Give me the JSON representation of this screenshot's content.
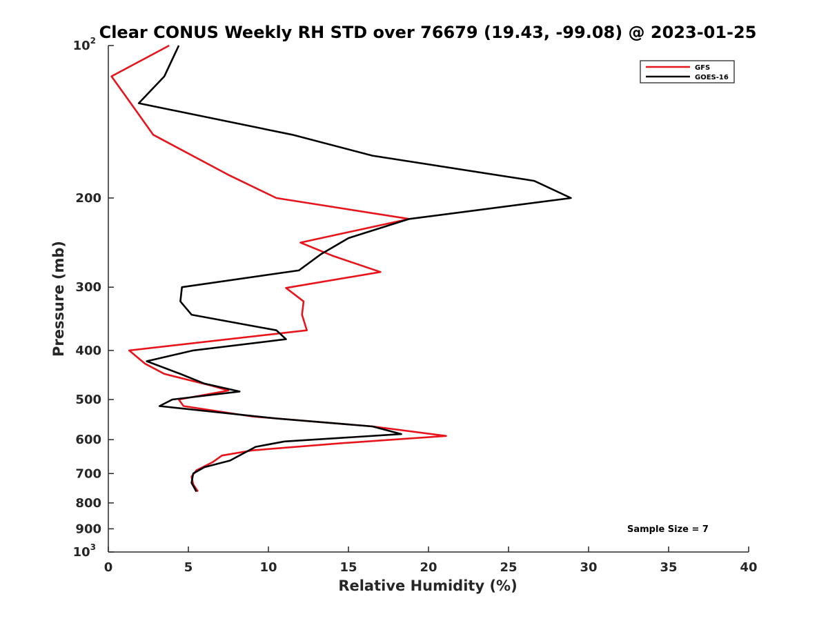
{
  "chart_data": {
    "type": "line",
    "title": "Clear CONUS Weekly RH STD over 76679 (19.43, -99.08) @ 2023-01-25",
    "xlabel": "Relative Humidity (%)",
    "ylabel": "Pressure (mb)",
    "xlim": [
      0,
      40
    ],
    "ylim": [
      100,
      1000
    ],
    "y_scale": "log",
    "y_reversed": true,
    "grid": false,
    "legend_position": "top-right",
    "annotation": "Sample Size = 7",
    "x_ticks": [
      "0",
      "5",
      "10",
      "15",
      "20",
      "25",
      "30",
      "35",
      "40"
    ],
    "y_ticks": [
      {
        "value": 100,
        "label": "10",
        "sup": "2"
      },
      {
        "value": 200,
        "label": "200",
        "sup": ""
      },
      {
        "value": 300,
        "label": "300",
        "sup": ""
      },
      {
        "value": 400,
        "label": "400",
        "sup": ""
      },
      {
        "value": 500,
        "label": "500",
        "sup": ""
      },
      {
        "value": 600,
        "label": "600",
        "sup": ""
      },
      {
        "value": 700,
        "label": "700",
        "sup": ""
      },
      {
        "value": 800,
        "label": "800",
        "sup": ""
      },
      {
        "value": 900,
        "label": "900",
        "sup": ""
      },
      {
        "value": 1000,
        "label": "10",
        "sup": "3"
      }
    ],
    "series": [
      {
        "name": "GFS",
        "color": "#e8141b",
        "points": [
          [
            3.8,
            100
          ],
          [
            0.2,
            115
          ],
          [
            1.4,
            130
          ],
          [
            2.8,
            150
          ],
          [
            7.5,
            180
          ],
          [
            10.5,
            200
          ],
          [
            18.8,
            220
          ],
          [
            12.0,
            245
          ],
          [
            14.0,
            260
          ],
          [
            17.0,
            280
          ],
          [
            11.1,
            301
          ],
          [
            12.2,
            320
          ],
          [
            12.1,
            340
          ],
          [
            12.4,
            365
          ],
          [
            1.3,
            400
          ],
          [
            2.3,
            425
          ],
          [
            3.5,
            445
          ],
          [
            6.5,
            470
          ],
          [
            7.5,
            480
          ],
          [
            4.4,
            500
          ],
          [
            4.7,
            515
          ],
          [
            9.0,
            540
          ],
          [
            16.5,
            565
          ],
          [
            21.1,
            590
          ],
          [
            14.5,
            610
          ],
          [
            9.0,
            630
          ],
          [
            7.1,
            645
          ],
          [
            6.5,
            665
          ],
          [
            5.5,
            690
          ],
          [
            5.2,
            710
          ],
          [
            5.3,
            735
          ],
          [
            5.6,
            760
          ]
        ]
      },
      {
        "name": "GOES-16",
        "color": "#000000",
        "points": [
          [
            4.4,
            100
          ],
          [
            3.5,
            115
          ],
          [
            1.9,
            130
          ],
          [
            11.5,
            150
          ],
          [
            16.5,
            165
          ],
          [
            26.6,
            185
          ],
          [
            28.9,
            200
          ],
          [
            18.8,
            220
          ],
          [
            15.0,
            240
          ],
          [
            13.3,
            258
          ],
          [
            11.9,
            278
          ],
          [
            4.6,
            300
          ],
          [
            4.5,
            320
          ],
          [
            5.2,
            340
          ],
          [
            10.5,
            365
          ],
          [
            11.1,
            380
          ],
          [
            5.3,
            400
          ],
          [
            2.4,
            420
          ],
          [
            4.5,
            445
          ],
          [
            6.0,
            465
          ],
          [
            8.2,
            482
          ],
          [
            4.0,
            500
          ],
          [
            3.2,
            515
          ],
          [
            10.5,
            545
          ],
          [
            16.5,
            565
          ],
          [
            18.3,
            585
          ],
          [
            11.0,
            605
          ],
          [
            9.2,
            620
          ],
          [
            7.6,
            660
          ],
          [
            6.0,
            680
          ],
          [
            5.3,
            700
          ],
          [
            5.2,
            730
          ],
          [
            5.5,
            760
          ]
        ]
      }
    ]
  }
}
